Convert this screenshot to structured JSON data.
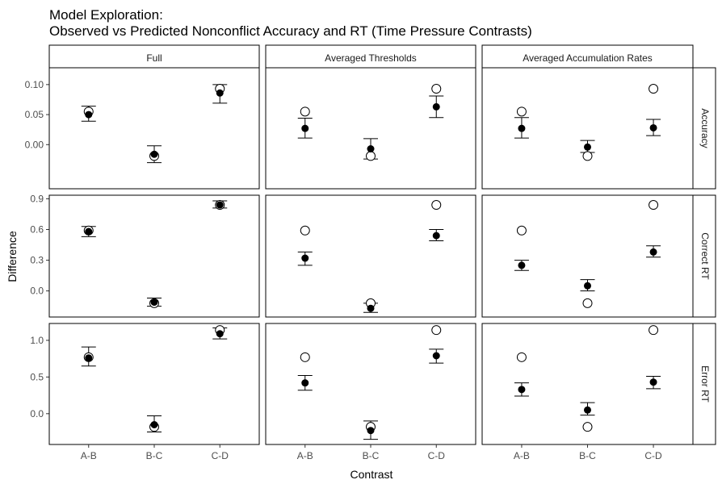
{
  "chart_data": {
    "type": "scatter",
    "title_line1": "Model Exploration:",
    "title_line2": "Observed vs Predicted Nonconflict Accuracy and RT (Time Pressure Contrasts)",
    "xlabel": "Contrast",
    "ylabel": "Difference",
    "categories": [
      "A-B",
      "B-C",
      "C-D"
    ],
    "columns": [
      "Full",
      "Averaged Thresholds",
      "Averaged Accumulation Rates"
    ],
    "rows": [
      {
        "label": "Accuracy",
        "ylim": [
          -0.0735,
          0.128
        ],
        "ticks": [
          0.0,
          0.05,
          0.1
        ],
        "tick_labels": [
          "0.00",
          "0.05",
          "0.10"
        ]
      },
      {
        "label": "Correct RT",
        "ylim": [
          -0.255,
          0.935
        ],
        "ticks": [
          0.0,
          0.3,
          0.6,
          0.9
        ],
        "tick_labels": [
          "0.0",
          "0.3",
          "0.6",
          "0.9"
        ]
      },
      {
        "label": "Error RT",
        "ylim": [
          -0.42,
          1.23
        ],
        "ticks": [
          0.0,
          0.5,
          1.0
        ],
        "tick_labels": [
          "0.0",
          "0.5",
          "1.0"
        ]
      }
    ],
    "legend": "none",
    "series": [
      {
        "name": "Predicted",
        "marker": "open-circle",
        "panels": [
          [
            [
              0.055,
              -0.019,
              0.093
            ],
            [
              0.055,
              -0.019,
              0.093
            ],
            [
              0.055,
              -0.019,
              0.093
            ]
          ],
          [
            [
              0.59,
              -0.12,
              0.84
            ],
            [
              0.59,
              -0.12,
              0.84
            ],
            [
              0.59,
              -0.12,
              0.84
            ]
          ],
          [
            [
              0.77,
              -0.18,
              1.14
            ],
            [
              0.77,
              -0.18,
              1.14
            ],
            [
              0.77,
              -0.18,
              1.14
            ]
          ]
        ]
      },
      {
        "name": "Observed",
        "marker": "filled-circle",
        "panels": [
          [
            {
              "values": [
                0.05,
                -0.016,
                0.086
              ],
              "lower": [
                0.039,
                -0.03,
                0.069
              ],
              "upper": [
                0.064,
                -0.002,
                0.1
              ]
            },
            {
              "values": [
                0.027,
                -0.007,
                0.063
              ],
              "lower": [
                0.011,
                -0.024,
                0.045
              ],
              "upper": [
                0.044,
                0.01,
                0.081
              ]
            },
            {
              "values": [
                0.027,
                -0.004,
                0.028
              ],
              "lower": [
                0.011,
                -0.013,
                0.015
              ],
              "upper": [
                0.045,
                0.007,
                0.042
              ]
            }
          ],
          [
            {
              "values": [
                0.58,
                -0.11,
                0.84
              ],
              "lower": [
                0.53,
                -0.15,
                0.81
              ],
              "upper": [
                0.63,
                -0.07,
                0.88
              ]
            },
            {
              "values": [
                0.32,
                -0.17,
                0.54
              ],
              "lower": [
                0.25,
                -0.21,
                0.49
              ],
              "upper": [
                0.38,
                -0.12,
                0.6
              ]
            },
            {
              "values": [
                0.25,
                0.05,
                0.38
              ],
              "lower": [
                0.2,
                0.0,
                0.33
              ],
              "upper": [
                0.3,
                0.11,
                0.44
              ]
            }
          ],
          [
            {
              "values": [
                0.76,
                -0.15,
                1.09
              ],
              "lower": [
                0.65,
                -0.25,
                1.02
              ],
              "upper": [
                0.91,
                -0.03,
                1.17
              ]
            },
            {
              "values": [
                0.42,
                -0.23,
                0.79
              ],
              "lower": [
                0.32,
                -0.35,
                0.69
              ],
              "upper": [
                0.52,
                -0.1,
                0.88
              ]
            },
            {
              "values": [
                0.33,
                0.05,
                0.43
              ],
              "lower": [
                0.24,
                -0.02,
                0.34
              ],
              "upper": [
                0.42,
                0.15,
                0.51
              ]
            }
          ]
        ]
      }
    ]
  }
}
